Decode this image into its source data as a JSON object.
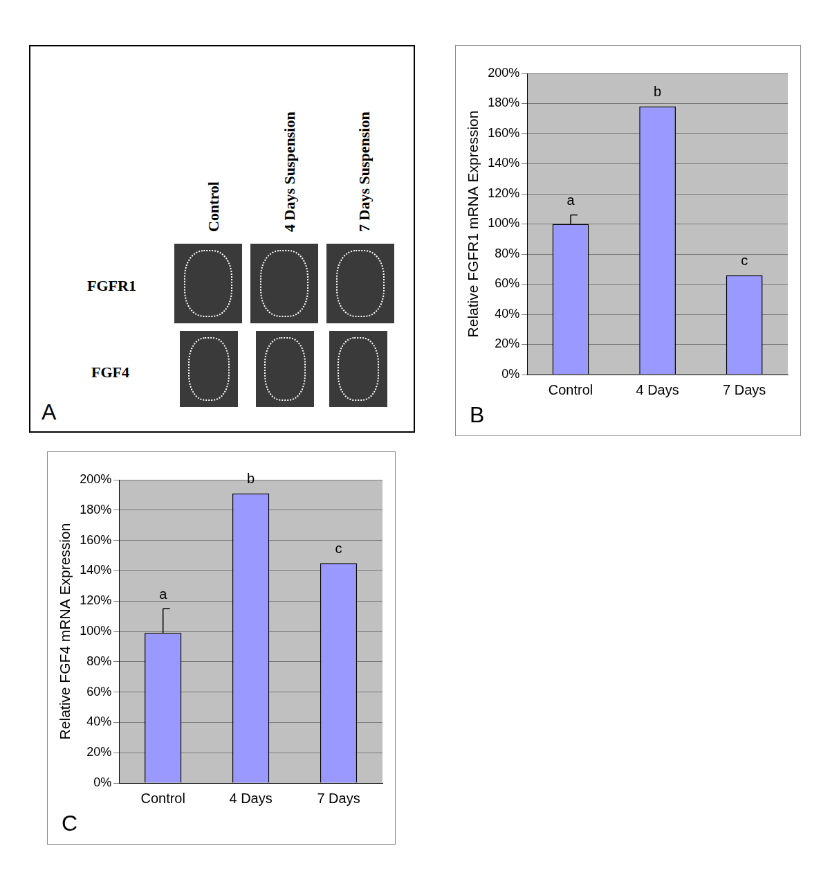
{
  "figure_a": {
    "panel_label": "A",
    "columns": [
      "Control",
      "4 Days Suspension",
      "7 Days Suspension"
    ],
    "rows": [
      "FGFR1",
      "FGF4"
    ]
  },
  "chart_data": [
    {
      "type": "bar",
      "panel_label": "B",
      "y_label": "Relative FGFR1 mRNA Expression",
      "categories": [
        "Control",
        "4 Days",
        "7 Days"
      ],
      "values": [
        100,
        178,
        66
      ],
      "errors": [
        6,
        null,
        null
      ],
      "annotations": [
        "a",
        "b",
        "c"
      ],
      "color": "#9999ff",
      "ylim": [
        0,
        200
      ],
      "yticks": [
        {
          "value": 0,
          "label": "0%"
        },
        {
          "value": 20,
          "label": "20%"
        },
        {
          "value": 40,
          "label": "40%"
        },
        {
          "value": 60,
          "label": "60%"
        },
        {
          "value": 80,
          "label": "80%"
        },
        {
          "value": 100,
          "label": "100%"
        },
        {
          "value": 120,
          "label": "120%"
        },
        {
          "value": 140,
          "label": "140%"
        },
        {
          "value": 160,
          "label": "160%"
        },
        {
          "value": 180,
          "label": "180%"
        },
        {
          "value": 200,
          "label": "200%"
        }
      ],
      "grid": true
    },
    {
      "type": "bar",
      "panel_label": "C",
      "y_label": "Relative FGF4 mRNA Expression",
      "categories": [
        "Control",
        "4 Days",
        "7 Days"
      ],
      "values": [
        99,
        191,
        145
      ],
      "errors": [
        16,
        null,
        null
      ],
      "annotations": [
        "a",
        "b",
        "c"
      ],
      "color": "#9999ff",
      "ylim": [
        0,
        200
      ],
      "yticks": [
        {
          "value": 0,
          "label": "0%"
        },
        {
          "value": 20,
          "label": "20%"
        },
        {
          "value": 40,
          "label": "40%"
        },
        {
          "value": 60,
          "label": "60%"
        },
        {
          "value": 80,
          "label": "80%"
        },
        {
          "value": 100,
          "label": "100%"
        },
        {
          "value": 120,
          "label": "120%"
        },
        {
          "value": 140,
          "label": "140%"
        },
        {
          "value": 160,
          "label": "160%"
        },
        {
          "value": 180,
          "label": "180%"
        },
        {
          "value": 200,
          "label": "200%"
        }
      ],
      "grid": true
    }
  ]
}
